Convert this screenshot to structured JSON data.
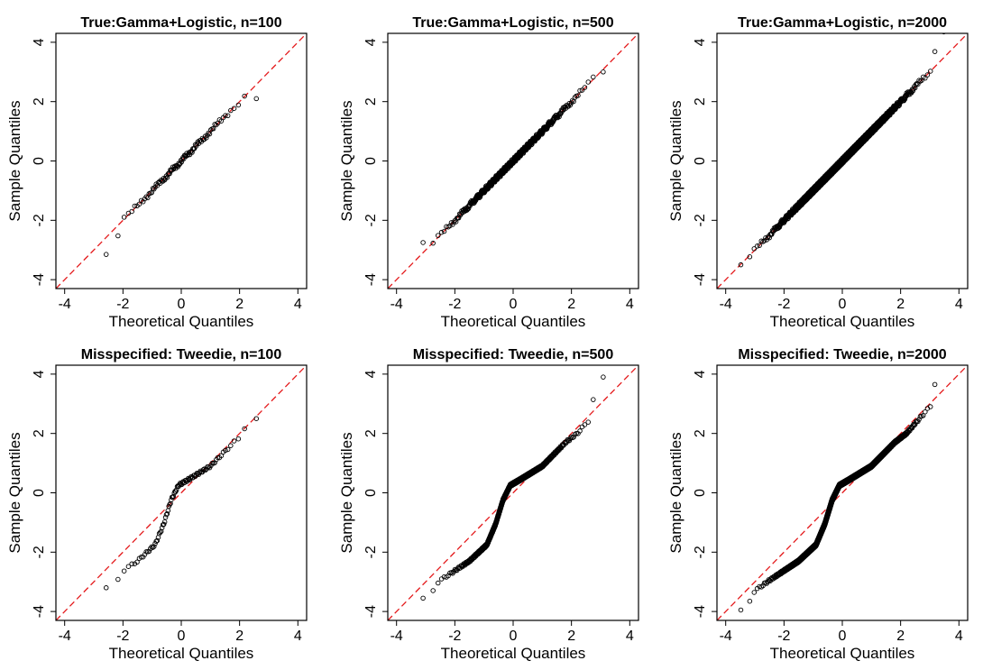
{
  "colors": {
    "points": "#000000",
    "reference_line": "#e41a1c",
    "frame": "#000000"
  },
  "chart_data": [
    {
      "type": "scatter",
      "title": "True:Gamma+Logistic, n=100",
      "xlabel": "Theoretical Quantiles",
      "ylabel": "Sample Quantiles",
      "xlim": [
        -4.3,
        4.3
      ],
      "ylim": [
        -4.3,
        4.3
      ],
      "xticks": [
        -4,
        -2,
        0,
        2,
        4
      ],
      "yticks": [
        -4,
        -2,
        0,
        2,
        4
      ],
      "reference_line": {
        "slope": 1,
        "intercept": 0,
        "style": "dashed",
        "color": "#e41a1c"
      },
      "n": 100,
      "pattern": "normal",
      "tail_low": -3.15,
      "tail_high": 2.1
    },
    {
      "type": "scatter",
      "title": "True:Gamma+Logistic, n=500",
      "xlabel": "Theoretical Quantiles",
      "ylabel": "Sample Quantiles",
      "xlim": [
        -4.3,
        4.3
      ],
      "ylim": [
        -4.3,
        4.3
      ],
      "xticks": [
        -4,
        -2,
        0,
        2,
        4
      ],
      "yticks": [
        -4,
        -2,
        0,
        2,
        4
      ],
      "reference_line": {
        "slope": 1,
        "intercept": 0,
        "style": "dashed",
        "color": "#e41a1c"
      },
      "n": 500,
      "pattern": "normal",
      "tail_low": -2.75,
      "tail_high": 3.0
    },
    {
      "type": "scatter",
      "title": "True:Gamma+Logistic, n=2000",
      "xlabel": "Theoretical Quantiles",
      "ylabel": "Sample Quantiles",
      "xlim": [
        -4.3,
        4.3
      ],
      "ylim": [
        -4.3,
        4.3
      ],
      "xticks": [
        -4,
        -2,
        0,
        2,
        4
      ],
      "yticks": [
        -4,
        -2,
        0,
        2,
        4
      ],
      "reference_line": {
        "slope": 1,
        "intercept": 0,
        "style": "dashed",
        "color": "#e41a1c"
      },
      "n": 2000,
      "pattern": "normal",
      "tail_low": -3.5,
      "tail_high": 4.35
    },
    {
      "type": "scatter",
      "title": "Misspecified: Tweedie, n=100",
      "xlabel": "Theoretical Quantiles",
      "ylabel": "Sample Quantiles",
      "xlim": [
        -4.3,
        4.3
      ],
      "ylim": [
        -4.3,
        4.3
      ],
      "xticks": [
        -4,
        -2,
        0,
        2,
        4
      ],
      "yticks": [
        -4,
        -2,
        0,
        2,
        4
      ],
      "reference_line": {
        "slope": 1,
        "intercept": 0,
        "style": "dashed",
        "color": "#e41a1c"
      },
      "n": 100,
      "pattern": "s-curve",
      "tail_low": -3.2,
      "tail_high": 2.5
    },
    {
      "type": "scatter",
      "title": "Misspecified: Tweedie, n=500",
      "xlabel": "Theoretical Quantiles",
      "ylabel": "Sample Quantiles",
      "xlim": [
        -4.3,
        4.3
      ],
      "ylim": [
        -4.3,
        4.3
      ],
      "xticks": [
        -4,
        -2,
        0,
        2,
        4
      ],
      "yticks": [
        -4,
        -2,
        0,
        2,
        4
      ],
      "reference_line": {
        "slope": 1,
        "intercept": 0,
        "style": "dashed",
        "color": "#e41a1c"
      },
      "n": 500,
      "pattern": "s-curve",
      "tail_low": -3.55,
      "tail_high": 3.9
    },
    {
      "type": "scatter",
      "title": "Misspecified: Tweedie, n=2000",
      "xlabel": "Theoretical Quantiles",
      "ylabel": "Sample Quantiles",
      "xlim": [
        -4.3,
        4.3
      ],
      "ylim": [
        -4.3,
        4.3
      ],
      "xticks": [
        -4,
        -2,
        0,
        2,
        4
      ],
      "yticks": [
        -4,
        -2,
        0,
        2,
        4
      ],
      "reference_line": {
        "slope": 1,
        "intercept": 0,
        "style": "dashed",
        "color": "#e41a1c"
      },
      "n": 2000,
      "pattern": "s-curve",
      "tail_low": -3.95,
      "tail_high": 4.4
    }
  ]
}
